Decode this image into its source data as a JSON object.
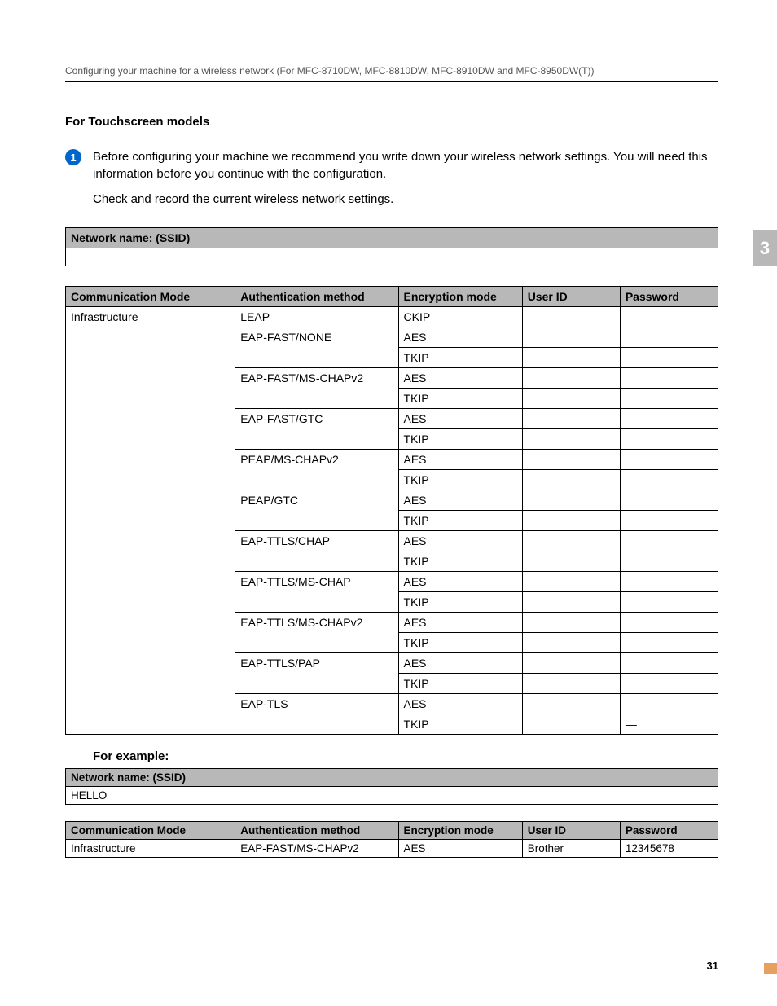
{
  "header": "Configuring your machine for a wireless network (For MFC-8710DW, MFC-8810DW, MFC-8910DW and MFC-8950DW(T))",
  "section_heading": "For Touchscreen models",
  "step": {
    "number": "1",
    "text": "Before configuring your machine we recommend you write down your wireless network settings. You will need this information before you continue with the configuration.",
    "subtext": "Check and record the current wireless network settings."
  },
  "side_tab": "3",
  "ssid_heading": "Network name: (SSID)",
  "main_table": {
    "columns": [
      "Communication Mode",
      "Authentication method",
      "Encryption mode",
      "User ID",
      "Password"
    ],
    "comm_mode": "Infrastructure",
    "auth_blocks": [
      {
        "auth": "LEAP",
        "encryptions": [
          {
            "enc": "CKIP",
            "user": "",
            "pass": ""
          }
        ]
      },
      {
        "auth": "EAP-FAST/NONE",
        "encryptions": [
          {
            "enc": "AES",
            "user": "",
            "pass": ""
          },
          {
            "enc": "TKIP",
            "user": "",
            "pass": ""
          }
        ]
      },
      {
        "auth": "EAP-FAST/MS-CHAPv2",
        "encryptions": [
          {
            "enc": "AES",
            "user": "",
            "pass": ""
          },
          {
            "enc": "TKIP",
            "user": "",
            "pass": ""
          }
        ]
      },
      {
        "auth": "EAP-FAST/GTC",
        "encryptions": [
          {
            "enc": "AES",
            "user": "",
            "pass": ""
          },
          {
            "enc": "TKIP",
            "user": "",
            "pass": ""
          }
        ]
      },
      {
        "auth": "PEAP/MS-CHAPv2",
        "encryptions": [
          {
            "enc": "AES",
            "user": "",
            "pass": ""
          },
          {
            "enc": "TKIP",
            "user": "",
            "pass": ""
          }
        ]
      },
      {
        "auth": "PEAP/GTC",
        "encryptions": [
          {
            "enc": "AES",
            "user": "",
            "pass": ""
          },
          {
            "enc": "TKIP",
            "user": "",
            "pass": ""
          }
        ]
      },
      {
        "auth": "EAP-TTLS/CHAP",
        "encryptions": [
          {
            "enc": "AES",
            "user": "",
            "pass": ""
          },
          {
            "enc": "TKIP",
            "user": "",
            "pass": ""
          }
        ]
      },
      {
        "auth": "EAP-TTLS/MS-CHAP",
        "encryptions": [
          {
            "enc": "AES",
            "user": "",
            "pass": ""
          },
          {
            "enc": "TKIP",
            "user": "",
            "pass": ""
          }
        ]
      },
      {
        "auth": "EAP-TTLS/MS-CHAPv2",
        "encryptions": [
          {
            "enc": "AES",
            "user": "",
            "pass": ""
          },
          {
            "enc": "TKIP",
            "user": "",
            "pass": ""
          }
        ]
      },
      {
        "auth": "EAP-TTLS/PAP",
        "encryptions": [
          {
            "enc": "AES",
            "user": "",
            "pass": ""
          },
          {
            "enc": "TKIP",
            "user": "",
            "pass": ""
          }
        ]
      },
      {
        "auth": "EAP-TLS",
        "encryptions": [
          {
            "enc": "AES",
            "user": "",
            "pass": "—"
          },
          {
            "enc": "TKIP",
            "user": "",
            "pass": "—"
          }
        ]
      }
    ]
  },
  "example_label": "For example:",
  "example_ssid_heading": "Network name: (SSID)",
  "example_ssid_value": "HELLO",
  "example_table": {
    "columns": [
      "Communication Mode",
      "Authentication method",
      "Encryption mode",
      "User ID",
      "Password"
    ],
    "row": {
      "comm": "Infrastructure",
      "auth": "EAP-FAST/MS-CHAPv2",
      "enc": "AES",
      "user": "Brother",
      "pass": "12345678"
    }
  },
  "page_number": "31"
}
